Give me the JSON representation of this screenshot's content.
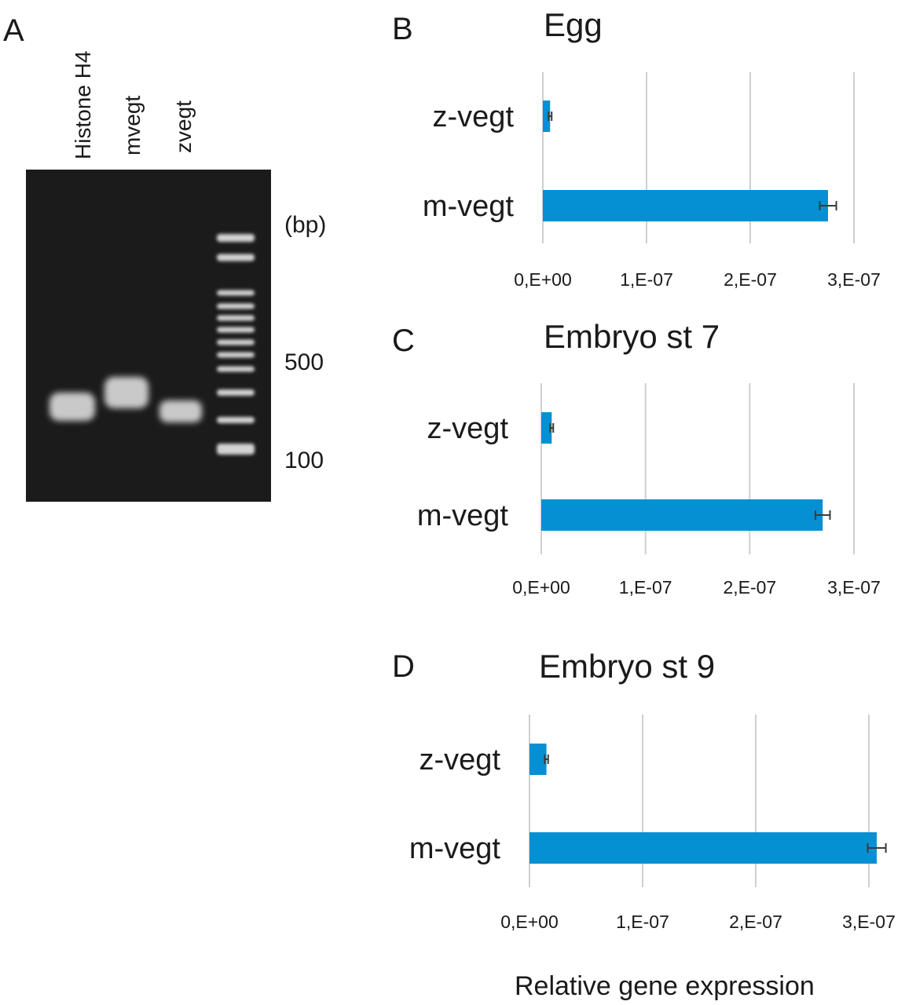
{
  "panels": {
    "a": "A",
    "b": "B",
    "c": "C",
    "d": "D"
  },
  "gel": {
    "lanes": [
      "Histone H4",
      "mvegt",
      "zvegt"
    ],
    "unit_label": "(bp)",
    "markers": [
      "500",
      "100"
    ]
  },
  "colors": {
    "bar": "#0590d3",
    "grid": "#cfcfcf",
    "gel_background": "#1b1b1b",
    "band": "#e8e8e8"
  },
  "chart_data": [
    {
      "type": "bar",
      "orientation": "horizontal",
      "title": "Egg",
      "categories": [
        "z-vegt",
        "m-vegt"
      ],
      "values": [
        7e-09,
        2.75e-07
      ],
      "errors": [
        1.5e-09,
        8e-09
      ],
      "xlim": [
        0,
        3e-07
      ],
      "xticks": [
        "0,E+00",
        "1,E-07",
        "2,E-07",
        "3,E-07"
      ],
      "grid": true
    },
    {
      "type": "bar",
      "orientation": "horizontal",
      "title": "Embryo st 7",
      "categories": [
        "z-vegt",
        "m-vegt"
      ],
      "values": [
        1e-08,
        2.7e-07
      ],
      "errors": [
        1.5e-09,
        7e-09
      ],
      "xlim": [
        0,
        3e-07
      ],
      "xticks": [
        "0,E+00",
        "1,E-07",
        "2,E-07",
        "3,E-07"
      ],
      "grid": true
    },
    {
      "type": "bar",
      "orientation": "horizontal",
      "title": "Embryo st 9",
      "categories": [
        "z-vegt",
        "m-vegt"
      ],
      "values": [
        1.5e-08,
        3.07e-07
      ],
      "errors": [
        1.5e-09,
        8e-09
      ],
      "xlim": [
        0,
        3e-07
      ],
      "xticks": [
        "0,E+00",
        "1,E-07",
        "2,E-07",
        "3,E-07"
      ],
      "xlabel": "Relative gene expression",
      "grid": true
    }
  ]
}
